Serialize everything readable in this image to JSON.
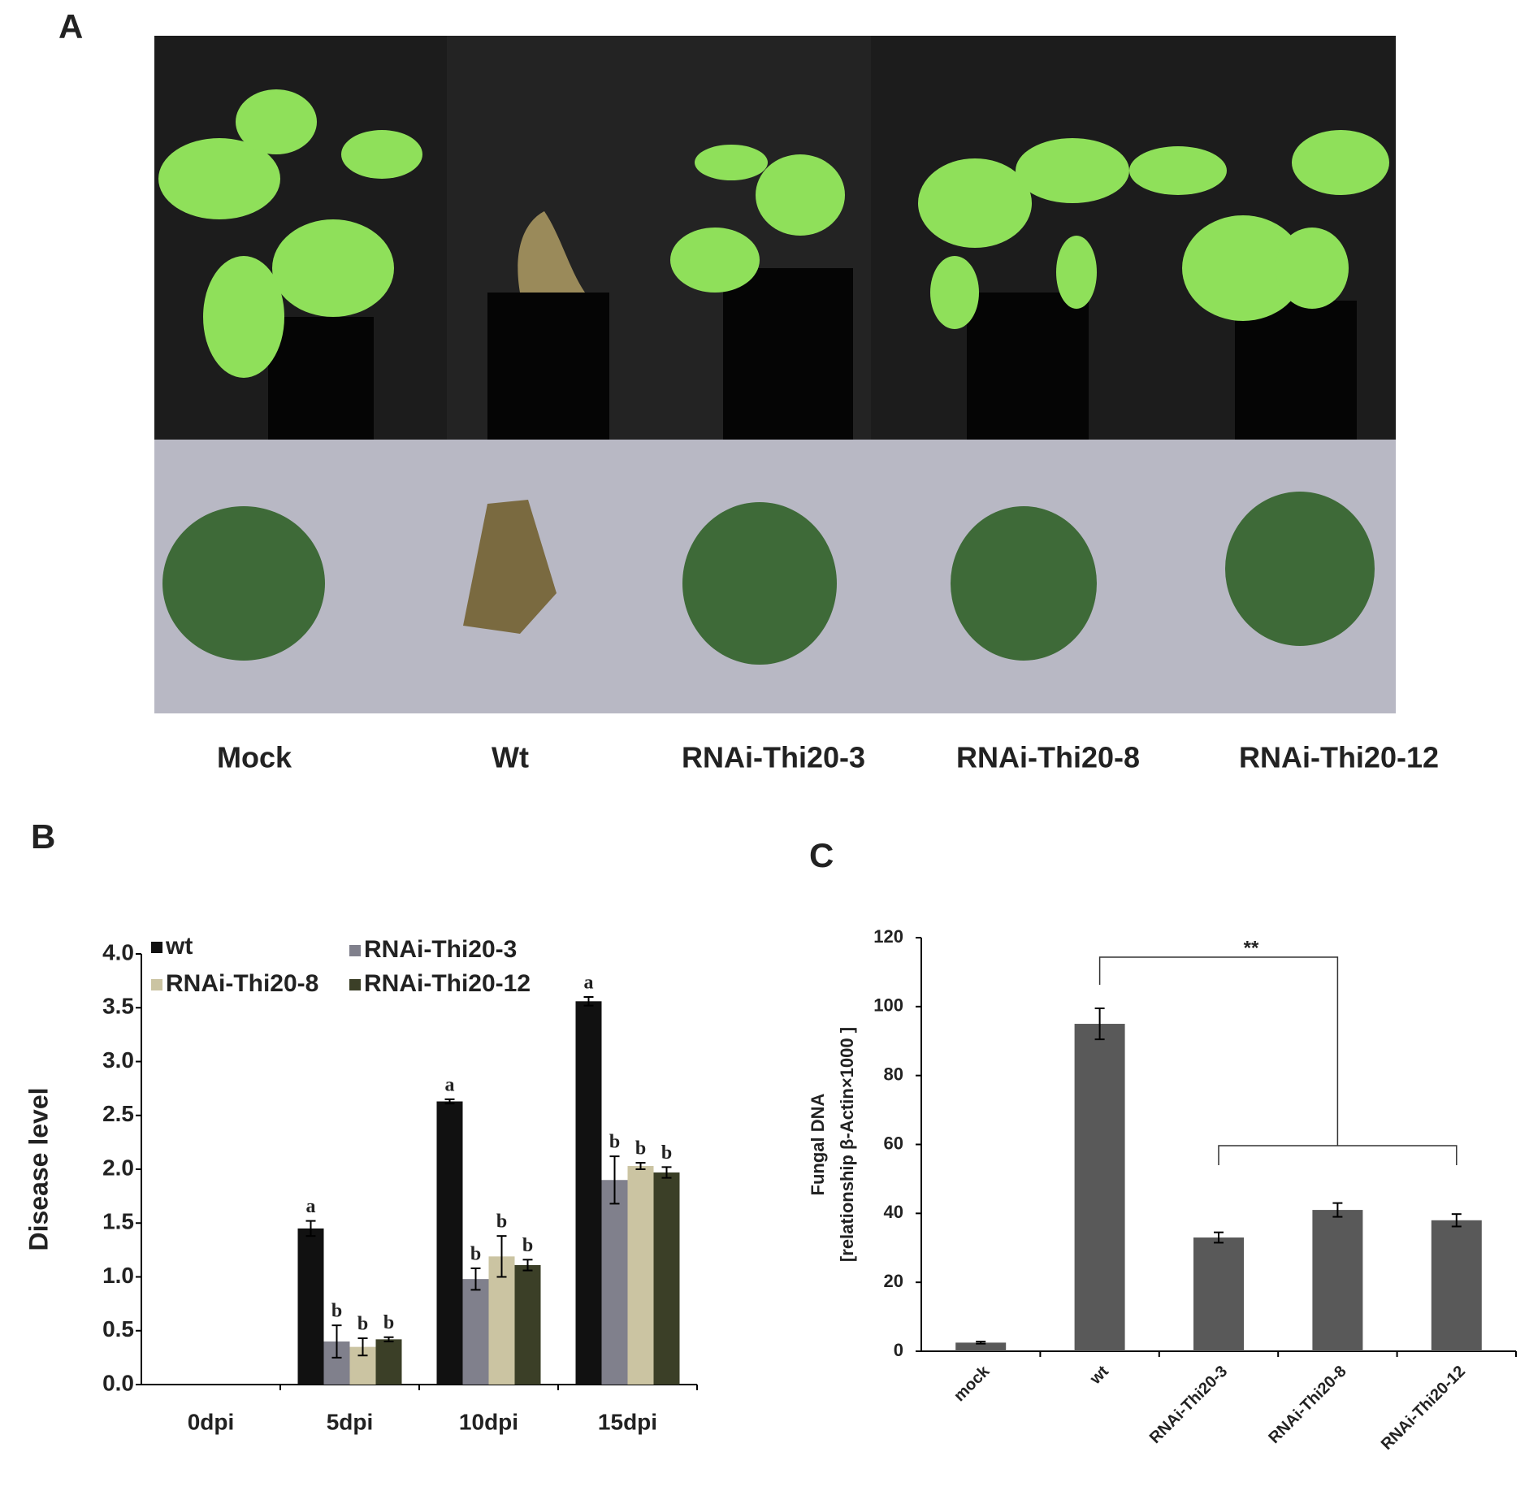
{
  "panel_labels": [
    "A",
    "B",
    "C"
  ],
  "photo_labels": [
    "Mock",
    "Wt",
    "RNAi-Thi20-3",
    "RNAi-Thi20-8",
    "RNAi-Thi20-12"
  ],
  "chart_data": [
    {
      "type": "bar",
      "y_label": "Disease level",
      "categories": [
        "0dpi",
        "5dpi",
        "10dpi",
        "15dpi"
      ],
      "series": [
        {
          "name": "wt",
          "color": "#111111",
          "values": [
            0,
            1.45,
            2.63,
            3.56
          ],
          "errors": [
            0,
            0.07,
            0.02,
            0.04
          ],
          "letters": [
            null,
            "a",
            "a",
            "a"
          ]
        },
        {
          "name": "RNAi-Thi20-3",
          "color": "#80808c",
          "values": [
            0,
            0.4,
            0.98,
            1.9
          ],
          "errors": [
            0,
            0.15,
            0.1,
            0.22
          ],
          "letters": [
            null,
            "b",
            "b",
            "b"
          ]
        },
        {
          "name": "RNAi-Thi20-8",
          "color": "#cbc4a2",
          "values": [
            0,
            0.35,
            1.19,
            2.03
          ],
          "errors": [
            0,
            0.08,
            0.19,
            0.03
          ],
          "letters": [
            null,
            "b",
            "b",
            "b"
          ]
        },
        {
          "name": "RNAi-Thi20-12",
          "color": "#3b3f27",
          "values": [
            0,
            0.42,
            1.11,
            1.97
          ],
          "errors": [
            0,
            0.02,
            0.05,
            0.05
          ],
          "letters": [
            null,
            "b",
            "b",
            "b"
          ]
        }
      ],
      "ylim": [
        0,
        4
      ],
      "yticks": [
        {
          "value": 0,
          "label": "0.0"
        },
        {
          "value": 0.5,
          "label": "0.5"
        },
        {
          "value": 1,
          "label": "1.0"
        },
        {
          "value": 1.5,
          "label": "1.5"
        },
        {
          "value": 2,
          "label": "2.0"
        },
        {
          "value": 2.5,
          "label": "2.5"
        },
        {
          "value": 3,
          "label": "3.0"
        },
        {
          "value": 3.5,
          "label": "3.5"
        },
        {
          "value": 4,
          "label": "4.0"
        }
      ]
    },
    {
      "type": "bar",
      "y_label": [
        "Fungal DNA",
        "[relationship  β-Actin×1000 ]"
      ],
      "categories": [
        "mock",
        "wt",
        "RNAi-Thi20-3",
        "RNAi-Thi20-8",
        "RNAi-Thi20-12"
      ],
      "values": [
        2.5,
        95,
        33,
        41,
        38
      ],
      "errors": [
        0.3,
        4.5,
        1.5,
        2,
        1.8
      ],
      "color": "#595959",
      "annotation": "**",
      "ylim": [
        0,
        120
      ],
      "yticks": [
        0,
        20,
        40,
        60,
        80,
        100,
        120
      ]
    }
  ]
}
